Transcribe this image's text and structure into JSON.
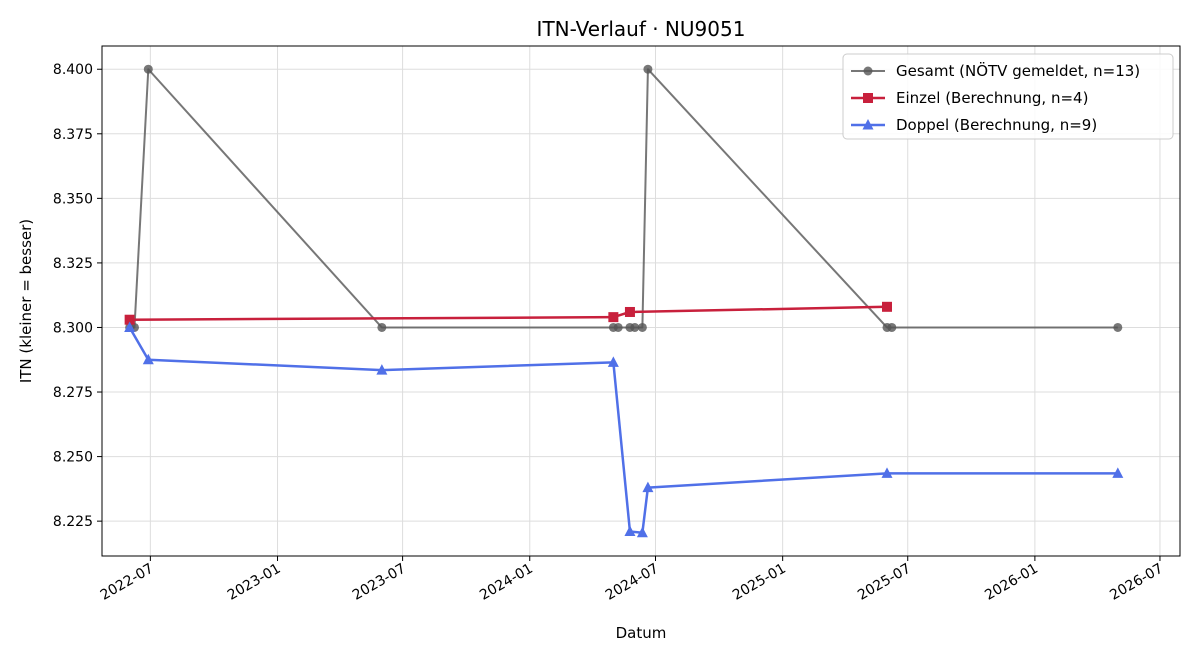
{
  "chart_data": {
    "type": "line",
    "title": "ITN-Verlauf · NU9051",
    "xlabel": "Datum",
    "ylabel": "ITN  (kleiner = besser)",
    "x_type": "date",
    "xlim": [
      "2022-04-22",
      "2026-07-30"
    ],
    "ylim": [
      8.2115,
      8.409
    ],
    "x_ticks": [
      {
        "value": "2022-07-01",
        "label": "2022-07"
      },
      {
        "value": "2023-01-01",
        "label": "2023-01"
      },
      {
        "value": "2023-07-01",
        "label": "2023-07"
      },
      {
        "value": "2024-01-01",
        "label": "2024-01"
      },
      {
        "value": "2024-07-01",
        "label": "2024-07"
      },
      {
        "value": "2025-01-01",
        "label": "2025-01"
      },
      {
        "value": "2025-07-01",
        "label": "2025-07"
      },
      {
        "value": "2026-01-01",
        "label": "2026-01"
      },
      {
        "value": "2026-07-01",
        "label": "2026-07"
      }
    ],
    "y_ticks": [
      8.225,
      8.25,
      8.275,
      8.3,
      8.325,
      8.35,
      8.375,
      8.4
    ],
    "y_tick_labels": [
      "8.225",
      "8.250",
      "8.275",
      "8.300",
      "8.325",
      "8.350",
      "8.375",
      "8.400"
    ],
    "grid": true,
    "legend_position": "top-right",
    "series": [
      {
        "name": "Gesamt (NÖTV gemeldet, n=13)",
        "color": "#555555",
        "opacity": 0.8,
        "marker": "circle",
        "points": [
          {
            "x": "2022-06-01",
            "y": 8.3
          },
          {
            "x": "2022-06-08",
            "y": 8.3
          },
          {
            "x": "2022-06-28",
            "y": 8.4
          },
          {
            "x": "2023-06-01",
            "y": 8.3
          },
          {
            "x": "2024-05-01",
            "y": 8.3
          },
          {
            "x": "2024-05-08",
            "y": 8.3
          },
          {
            "x": "2024-05-25",
            "y": 8.3
          },
          {
            "x": "2024-06-01",
            "y": 8.3
          },
          {
            "x": "2024-06-12",
            "y": 8.3
          },
          {
            "x": "2024-06-20",
            "y": 8.4
          },
          {
            "x": "2025-06-01",
            "y": 8.3
          },
          {
            "x": "2025-06-08",
            "y": 8.3
          },
          {
            "x": "2026-05-01",
            "y": 8.3
          }
        ]
      },
      {
        "name": "Einzel (Berechnung, n=4)",
        "color": "#c8203c",
        "opacity": 1,
        "marker": "square",
        "points": [
          {
            "x": "2022-06-01",
            "y": 8.303
          },
          {
            "x": "2024-05-01",
            "y": 8.304
          },
          {
            "x": "2024-05-25",
            "y": 8.306
          },
          {
            "x": "2025-06-01",
            "y": 8.308
          }
        ]
      },
      {
        "name": "Doppel (Berechnung, n=9)",
        "color": "#5070e8",
        "opacity": 1,
        "marker": "triangle",
        "points": [
          {
            "x": "2022-06-01",
            "y": 8.3
          },
          {
            "x": "2022-06-28",
            "y": 8.2875
          },
          {
            "x": "2023-06-01",
            "y": 8.2835
          },
          {
            "x": "2024-05-01",
            "y": 8.2865
          },
          {
            "x": "2024-05-25",
            "y": 8.221
          },
          {
            "x": "2024-06-12",
            "y": 8.2205
          },
          {
            "x": "2024-06-20",
            "y": 8.238
          },
          {
            "x": "2025-06-01",
            "y": 8.2435
          },
          {
            "x": "2026-05-01",
            "y": 8.2435
          }
        ]
      }
    ]
  }
}
